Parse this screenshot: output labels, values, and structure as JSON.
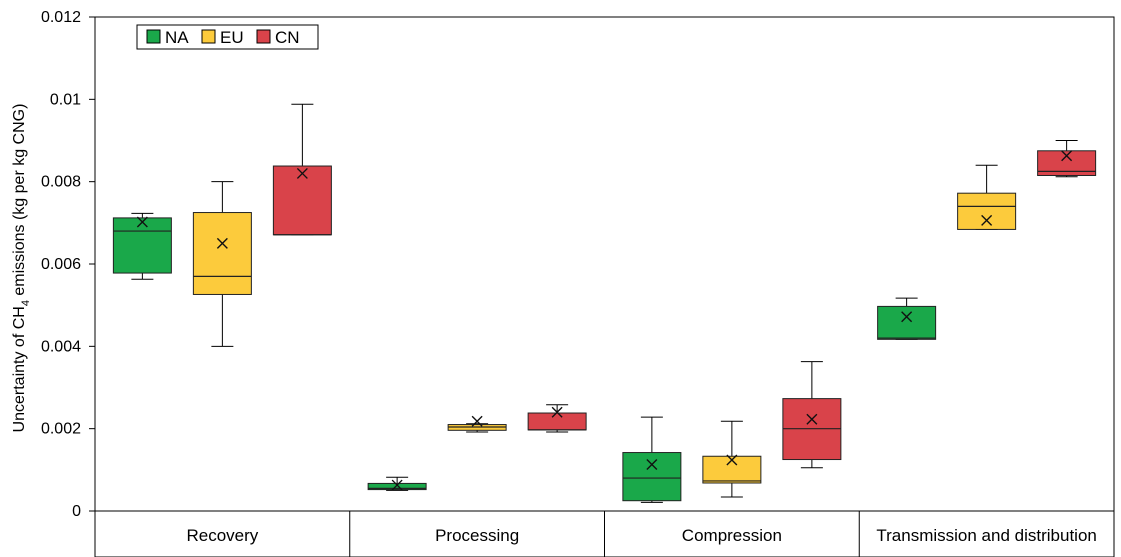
{
  "chart_data": {
    "type": "box",
    "ylabel_main": "Uncertainty of CH",
    "ylabel_sub": "4",
    "ylabel_rest": " emissions (kg per kg CNG)",
    "ylim": [
      0,
      0.012
    ],
    "yticks": [
      {
        "value": 0,
        "label": "0"
      },
      {
        "value": 0.002,
        "label": "0.002"
      },
      {
        "value": 0.004,
        "label": "0.004"
      },
      {
        "value": 0.006,
        "label": "0.006"
      },
      {
        "value": 0.008,
        "label": "0.008"
      },
      {
        "value": 0.01,
        "label": "0.01"
      },
      {
        "value": 0.012,
        "label": "0.012"
      }
    ],
    "categories": [
      "Recovery",
      "Processing",
      "Compression",
      "Transmission and distribution"
    ],
    "legend_position": "top-left",
    "series": [
      {
        "name": "NA",
        "color": "#1aa84a",
        "boxes": [
          {
            "min": 0.00563,
            "q1": 0.00578,
            "median": 0.0068,
            "q3": 0.00712,
            "max": 0.00723,
            "mean": 0.00702
          },
          {
            "min": 0.0005,
            "q1": 0.00052,
            "median": 0.00055,
            "q3": 0.00067,
            "max": 0.00082,
            "mean": 0.00063
          },
          {
            "min": 0.00021,
            "q1": 0.00025,
            "median": 0.0008,
            "q3": 0.00142,
            "max": 0.00228,
            "mean": 0.00113
          },
          {
            "min": 0.00417,
            "q1": 0.00417,
            "median": 0.0042,
            "q3": 0.00497,
            "max": 0.00517,
            "mean": 0.00472
          }
        ]
      },
      {
        "name": "EU",
        "color": "#fccb3c",
        "boxes": [
          {
            "min": 0.004,
            "q1": 0.00526,
            "median": 0.0057,
            "q3": 0.00725,
            "max": 0.008,
            "mean": 0.0065
          },
          {
            "min": 0.00192,
            "q1": 0.00196,
            "median": 0.00204,
            "q3": 0.0021,
            "max": 0.00212,
            "mean": 0.00218
          },
          {
            "min": 0.00034,
            "q1": 0.00068,
            "median": 0.00073,
            "q3": 0.00133,
            "max": 0.00218,
            "mean": 0.00124
          },
          {
            "min": 0.00684,
            "q1": 0.00684,
            "median": 0.0074,
            "q3": 0.00772,
            "max": 0.0084,
            "mean": 0.00706
          }
        ]
      },
      {
        "name": "CN",
        "color": "#d9434a",
        "boxes": [
          {
            "min": 0.00671,
            "q1": 0.00671,
            "median": 0.00671,
            "q3": 0.00838,
            "max": 0.00988,
            "mean": 0.0082
          },
          {
            "min": 0.00192,
            "q1": 0.00197,
            "median": 0.00197,
            "q3": 0.00238,
            "max": 0.00258,
            "mean": 0.0024
          },
          {
            "min": 0.00105,
            "q1": 0.00125,
            "median": 0.002,
            "q3": 0.00273,
            "max": 0.00363,
            "mean": 0.00223
          },
          {
            "min": 0.00812,
            "q1": 0.00815,
            "median": 0.00825,
            "q3": 0.00875,
            "max": 0.009,
            "mean": 0.00863
          }
        ]
      }
    ]
  }
}
